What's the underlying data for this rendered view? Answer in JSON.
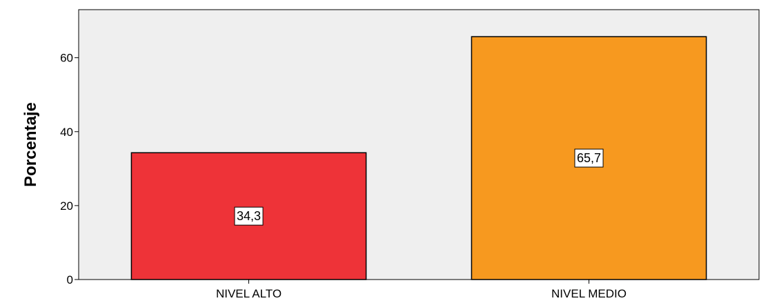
{
  "chart_data": {
    "type": "bar",
    "categories": [
      "NIVEL ALTO",
      "NIVEL MEDIO"
    ],
    "values": [
      34.3,
      65.7
    ],
    "data_labels": [
      "34,3",
      "65,7"
    ],
    "ylabel": "Porcentaje",
    "xlabel": "",
    "ylim": [
      0,
      73
    ],
    "yticks": [
      0,
      20,
      40,
      60
    ],
    "ytick_labels": [
      "0",
      "20",
      "40",
      "60"
    ],
    "colors": [
      "#ee3338",
      "#f7991f"
    ],
    "plot_background": "#efefef",
    "grid": false,
    "legend": "none"
  }
}
